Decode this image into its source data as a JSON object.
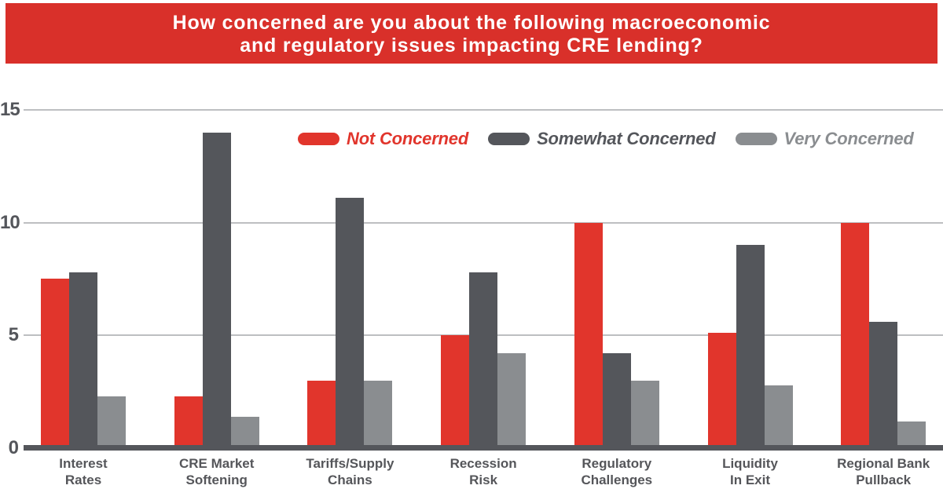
{
  "title": {
    "line1": "How concerned are you about the following macroeconomic",
    "line2": "and regulatory issues impacting CRE lending?"
  },
  "colors": {
    "banner_red": "#D9302A",
    "bar_red": "#E1352C",
    "dark_gray": "#54565B",
    "light_gray": "#8A8D90",
    "gridline_gray": "#BDBFC1",
    "axis_gray": "#54565B",
    "tick_text": "#54565B",
    "category_text": "#55565A",
    "title_text": "#FFFFFF"
  },
  "chart_data": {
    "type": "bar",
    "title": "How concerned are you about the following macroeconomic and regulatory issues impacting CRE lending?",
    "categories": [
      "Interest\nRates",
      "CRE Market\nSoftening",
      "Tariffs/Supply\nChains",
      "Recession\nRisk",
      "Regulatory\nChallenges",
      "Liquidity\nIn Exit",
      "Regional Bank\nPullback"
    ],
    "series": [
      {
        "name": "Not Concerned",
        "color": "#E1352C",
        "values": [
          7.5,
          2.3,
          3.0,
          5.0,
          10.0,
          5.1,
          10.0
        ]
      },
      {
        "name": "Somewhat Concerned",
        "color": "#54565B",
        "values": [
          7.8,
          14.0,
          11.1,
          7.8,
          4.2,
          9.0,
          5.6
        ]
      },
      {
        "name": "Very Concerned",
        "color": "#8A8D90",
        "values": [
          2.3,
          1.4,
          3.0,
          4.2,
          3.0,
          2.8,
          1.2
        ]
      }
    ],
    "xlabel": "",
    "ylabel": "",
    "ylim": [
      0,
      15
    ],
    "yticks": [
      0,
      5,
      10,
      15
    ],
    "grid": true,
    "legend_position": "top-inside"
  }
}
